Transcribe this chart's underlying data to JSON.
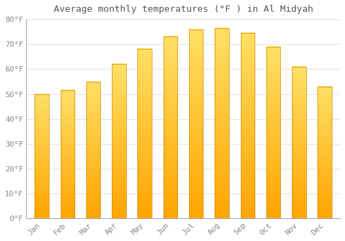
{
  "title": "Average monthly temperatures (°F ) in Al Midyah",
  "months": [
    "Jan",
    "Feb",
    "Mar",
    "Apr",
    "May",
    "Jun",
    "Jul",
    "Aug",
    "Sep",
    "Oct",
    "Nov",
    "Dec"
  ],
  "values": [
    50,
    51.5,
    55,
    62,
    68,
    73,
    76,
    76.5,
    74.5,
    69,
    61,
    53
  ],
  "bar_color_bottom": "#FFA500",
  "bar_color_top": "#FFD966",
  "bar_edge_color": "#CC8800",
  "background_color": "#FFFFFF",
  "grid_color": "#DDDDDD",
  "text_color": "#888888",
  "title_color": "#555555",
  "ylim": [
    0,
    80
  ],
  "yticks": [
    0,
    10,
    20,
    30,
    40,
    50,
    60,
    70,
    80
  ],
  "ylabel_suffix": "°F",
  "title_fontsize": 9.5,
  "tick_fontsize": 8,
  "bar_width": 0.55
}
